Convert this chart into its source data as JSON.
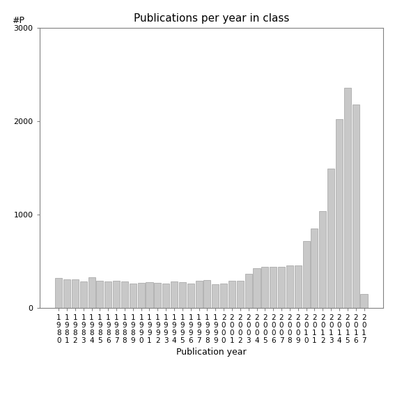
{
  "title": "Publications per year in class",
  "xlabel": "Publication year",
  "ylabel": "#P",
  "ylim": [
    0,
    3000
  ],
  "yticks": [
    0,
    1000,
    2000,
    3000
  ],
  "bar_color": "#c8c8c8",
  "bar_edgecolor": "#a0a0a0",
  "background_color": "#ffffff",
  "years": [
    "1980",
    "1981",
    "1982",
    "1983",
    "1984",
    "1985",
    "1986",
    "1987",
    "1988",
    "1989",
    "1990",
    "1991",
    "1992",
    "1993",
    "1994",
    "1995",
    "1996",
    "1997",
    "1998",
    "1999",
    "2000",
    "2001",
    "2002",
    "2003",
    "2004",
    "2005",
    "2006",
    "2007",
    "2008",
    "2009",
    "2010",
    "2011",
    "2012",
    "2013",
    "2014",
    "2015",
    "2016",
    "2017"
  ],
  "values": [
    320,
    310,
    305,
    285,
    330,
    295,
    285,
    290,
    285,
    260,
    270,
    275,
    270,
    265,
    285,
    275,
    260,
    290,
    300,
    255,
    265,
    290,
    295,
    370,
    430,
    445,
    445,
    440,
    460,
    460,
    720,
    850,
    1040,
    1490,
    2020,
    2360,
    2180,
    150
  ],
  "title_fontsize": 11,
  "axis_fontsize": 9,
  "tick_fontsize": 7.5
}
